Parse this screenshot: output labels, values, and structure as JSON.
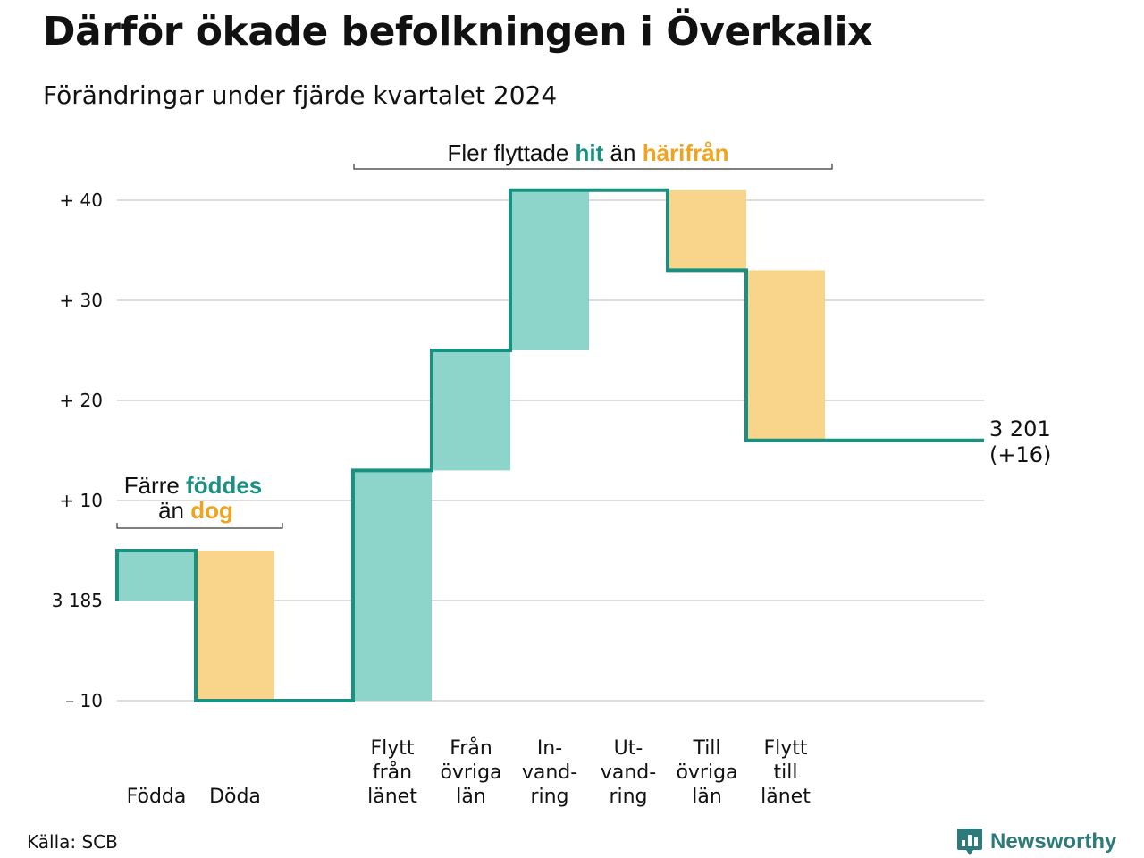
{
  "title": "Därför ökade befolkningen i Överkalix",
  "subtitle": "Förändringar under fjärde kvartalet 2024",
  "source": "Källa: SCB",
  "brand": "Newsworthy",
  "colors": {
    "increase_fill": "#8dd5cb",
    "decrease_fill": "#f9d48b",
    "line": "#1a9081",
    "teal_text": "#1a9081",
    "orange_text": "#f1a21e",
    "gridline": "#dddddd",
    "brand": "#2d7a7a"
  },
  "annotations": {
    "births": {
      "line1_pre": "Färre ",
      "line1_hl": "föddes",
      "line2_pre": "än ",
      "line2_hl": "dog"
    },
    "migration": {
      "pre": "Fler flyttade ",
      "hl1": "hit",
      "mid": " än ",
      "hl2": "härifrån"
    }
  },
  "chart_data": {
    "type": "waterfall",
    "title": "Därför ökade befolkningen i Överkalix",
    "subtitle": "Förändringar under fjärde kvartalet 2024",
    "start_value": 3185,
    "end_label": [
      "3 201",
      "(+16)"
    ],
    "ylim": [
      -10,
      40
    ],
    "yticks": [
      {
        "value": -10,
        "label": "– 10"
      },
      {
        "value": 0,
        "label": "3 185"
      },
      {
        "value": 10,
        "label": "+ 10"
      },
      {
        "value": 20,
        "label": "+ 20"
      },
      {
        "value": 30,
        "label": "+ 30"
      },
      {
        "value": 40,
        "label": "+ 40"
      }
    ],
    "grid": true,
    "steps": [
      {
        "category": [
          "Födda"
        ],
        "change": 5,
        "from": 0,
        "to": 5
      },
      {
        "category": [
          "Döda"
        ],
        "change": -15,
        "from": 5,
        "to": -10
      },
      {
        "category": [],
        "change": 0,
        "from": -10,
        "to": -10,
        "gap": true
      },
      {
        "category": [
          "Flytt",
          "från",
          "länet"
        ],
        "change": 23,
        "from": -10,
        "to": 13
      },
      {
        "category": [
          "Från",
          "övriga",
          "län"
        ],
        "change": 12,
        "from": 13,
        "to": 25
      },
      {
        "category": [
          "In-",
          "vand-",
          "ring"
        ],
        "change": 16,
        "from": 25,
        "to": 41
      },
      {
        "category": [
          "Ut-",
          "vand-",
          "ring"
        ],
        "change": 0,
        "from": 41,
        "to": 41
      },
      {
        "category": [
          "Till",
          "övriga",
          "län"
        ],
        "change": -8,
        "from": 41,
        "to": 33
      },
      {
        "category": [
          "Flytt",
          "till",
          "länet"
        ],
        "change": -17,
        "from": 33,
        "to": 16
      }
    ],
    "final_value": 16
  }
}
